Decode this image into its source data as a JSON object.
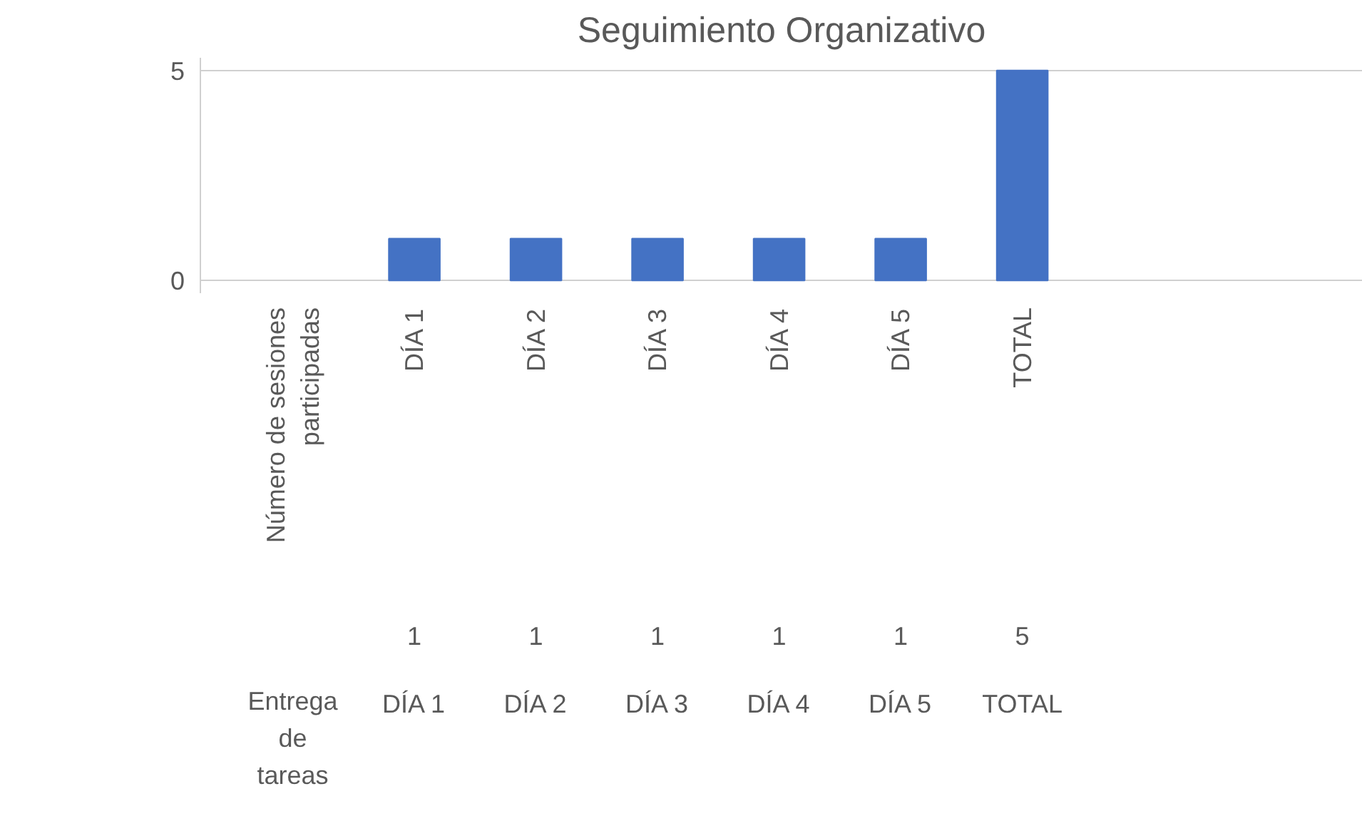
{
  "chart_data": {
    "type": "bar",
    "title": "Seguimiento Organizativo",
    "categories": [
      "Número de sesiones participadas",
      "DÍA 1",
      "DÍA 2",
      "DÍA 3",
      "DÍA 4",
      "DÍA 5",
      "TOTAL"
    ],
    "series": [
      {
        "name": "Entrega de tareas",
        "color": "#4472c4",
        "values": [
          null,
          1,
          1,
          1,
          1,
          1,
          5
        ]
      }
    ],
    "ylim": [
      -0.3,
      5.3
    ],
    "yticks": [
      0,
      5
    ],
    "grid": "y",
    "data_labels": true
  }
}
